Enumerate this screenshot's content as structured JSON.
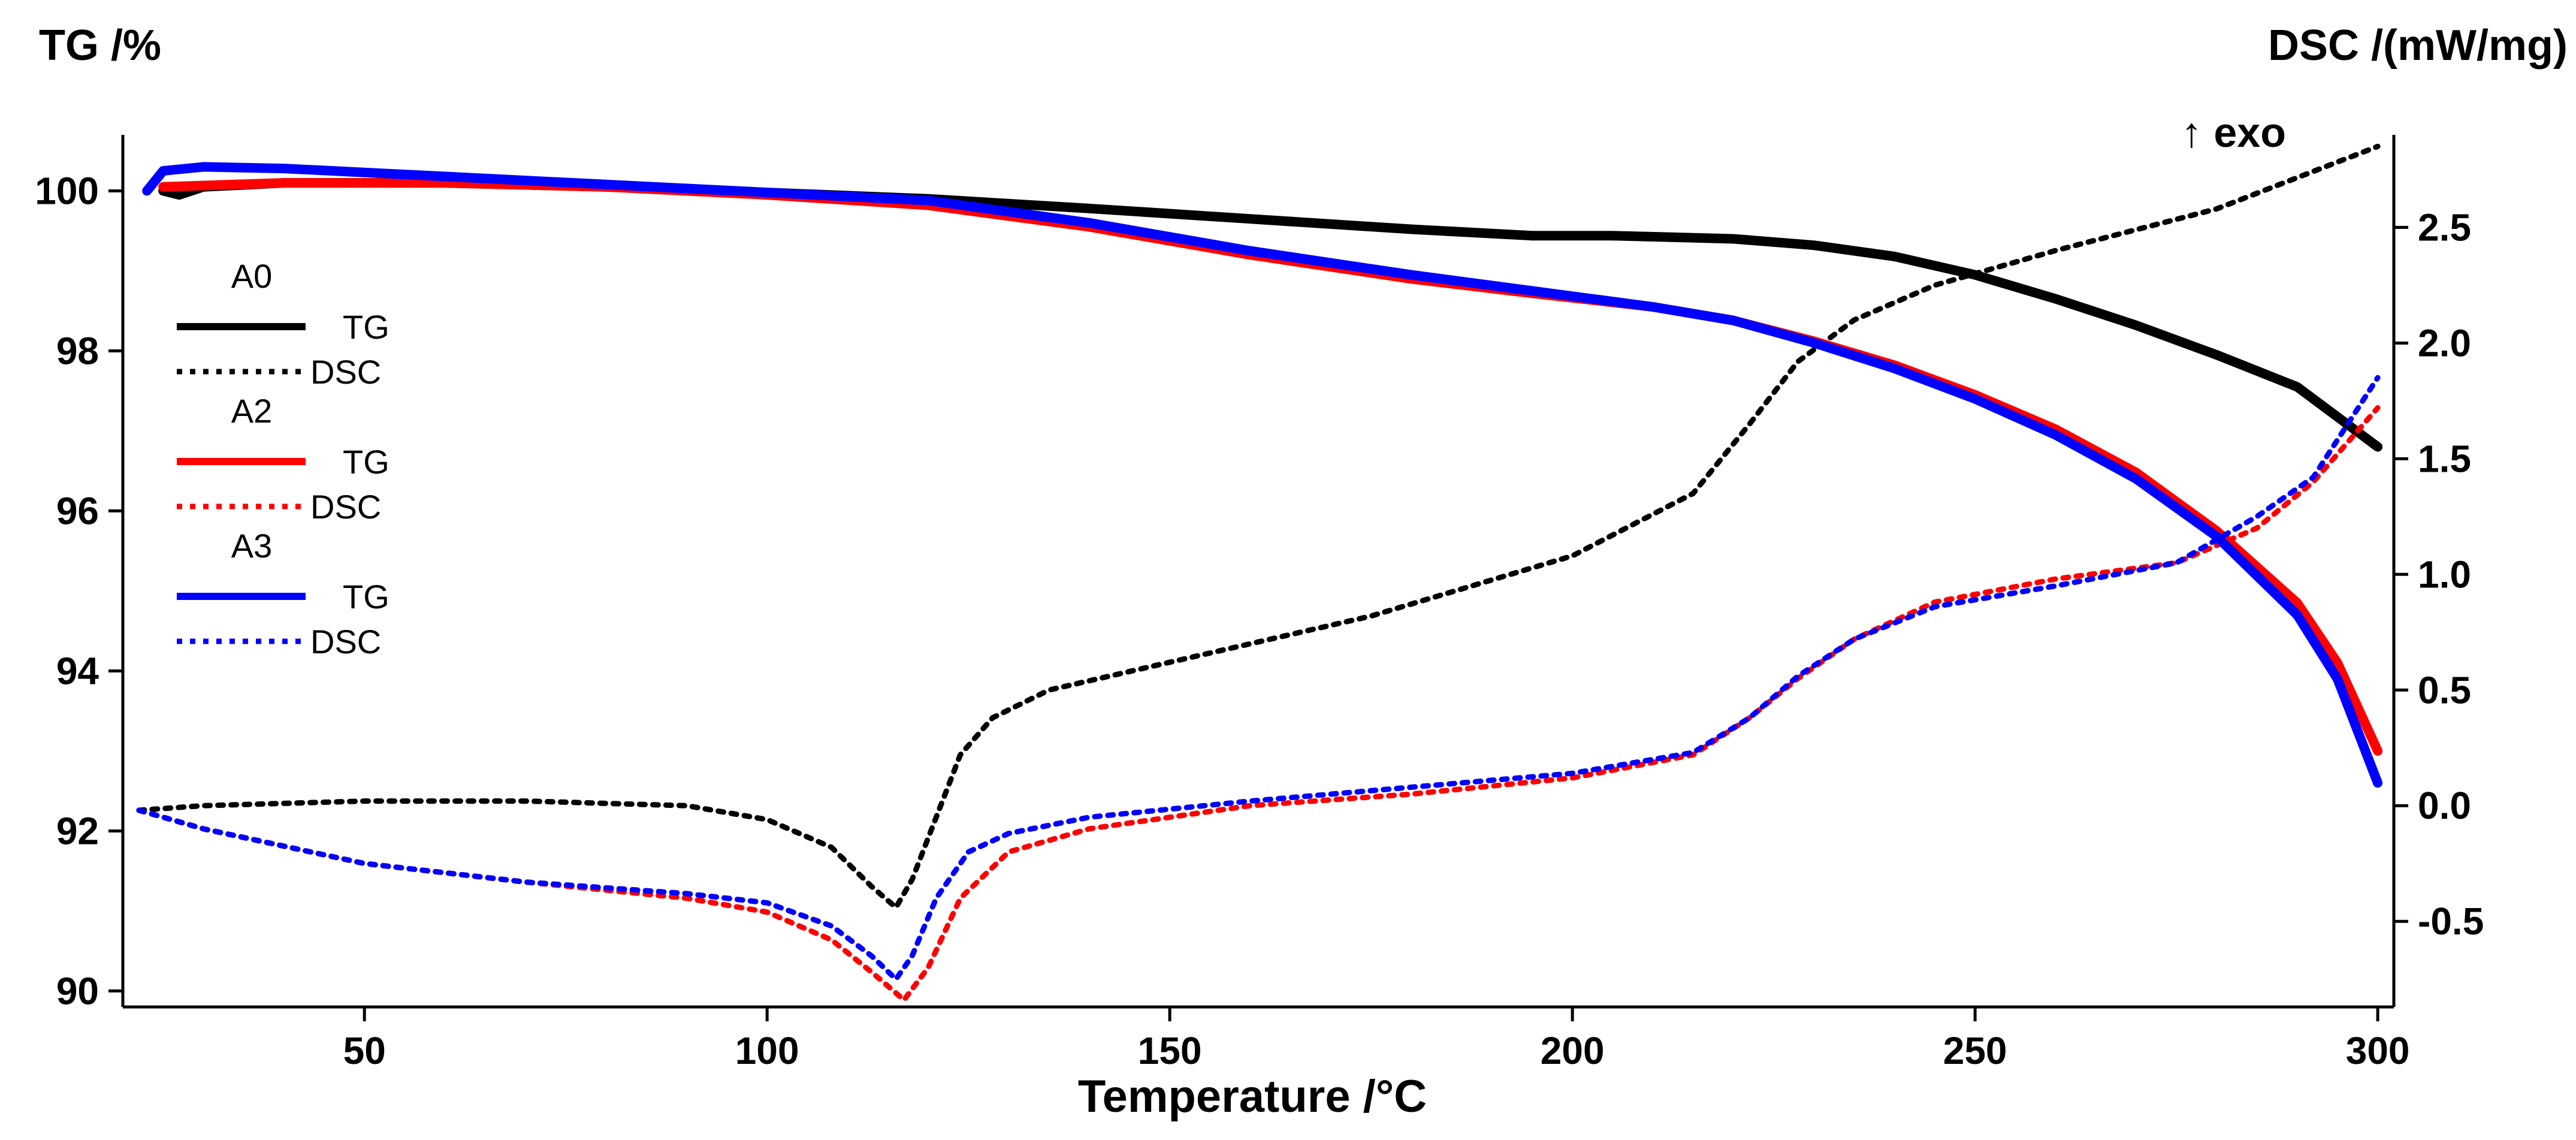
{
  "chart_data": {
    "type": "line",
    "title": "",
    "xlabel": "Temperature /°C",
    "ylabel_left": "TG /%",
    "ylabel_right": "DSC /(mW/mg)",
    "exo_label": "↑ exo",
    "xlim": [
      20,
      302
    ],
    "ylim_left": [
      89.8,
      100.7
    ],
    "ylim_right": [
      -0.87,
      2.9
    ],
    "x_ticks": [
      50,
      100,
      150,
      200,
      250,
      300
    ],
    "y_left_ticks": [
      90,
      92,
      94,
      96,
      98,
      100
    ],
    "y_right_ticks": [
      -0.5,
      0.0,
      0.5,
      1.0,
      1.5,
      2.0,
      2.5
    ],
    "y_right_tick_labels": [
      "-0.5",
      "0.0",
      "0.5",
      "1.0",
      "1.5",
      "2.0",
      "2.5"
    ],
    "legend": {
      "groups": [
        {
          "name": "A0",
          "tg_label": "TG",
          "dsc_label": "DSC",
          "color": "#000000"
        },
        {
          "name": "A2",
          "tg_label": "TG",
          "dsc_label": "DSC",
          "color": "#ff0000"
        },
        {
          "name": "A3",
          "tg_label": "TG",
          "dsc_label": "DSC",
          "color": "#0000ff"
        }
      ]
    },
    "series": [
      {
        "name": "A0 TG",
        "axis": "left",
        "style": "solid",
        "color": "#000000",
        "x": [
          25,
          27,
          30,
          40,
          60,
          80,
          100,
          120,
          140,
          160,
          180,
          195,
          205,
          220,
          230,
          240,
          250,
          260,
          270,
          280,
          290,
          300
        ],
        "y": [
          100.0,
          99.95,
          100.05,
          100.1,
          100.1,
          100.05,
          99.98,
          99.9,
          99.78,
          99.65,
          99.52,
          99.44,
          99.44,
          99.4,
          99.32,
          99.18,
          98.95,
          98.65,
          98.32,
          97.95,
          97.55,
          96.8
        ]
      },
      {
        "name": "A0 DSC",
        "axis": "right",
        "style": "dotted",
        "color": "#000000",
        "x": [
          22,
          30,
          50,
          70,
          90,
          100,
          108,
          113,
          116,
          118,
          121,
          124,
          128,
          135,
          150,
          175,
          200,
          215,
          222,
          228,
          235,
          245,
          260,
          280,
          300
        ],
        "y": [
          -0.02,
          0.0,
          0.02,
          0.02,
          0.0,
          -0.06,
          -0.18,
          -0.35,
          -0.44,
          -0.32,
          -0.05,
          0.22,
          0.38,
          0.5,
          0.62,
          0.82,
          1.08,
          1.35,
          1.65,
          1.92,
          2.1,
          2.25,
          2.4,
          2.58,
          2.85
        ]
      },
      {
        "name": "A2 TG",
        "axis": "left",
        "style": "solid",
        "color": "#ff0000",
        "x": [
          25,
          40,
          60,
          80,
          100,
          120,
          140,
          160,
          180,
          195,
          210,
          220,
          230,
          240,
          250,
          260,
          270,
          280,
          290,
          295,
          300
        ],
        "y": [
          100.05,
          100.1,
          100.1,
          100.05,
          99.95,
          99.82,
          99.55,
          99.2,
          98.9,
          98.72,
          98.55,
          98.38,
          98.12,
          97.82,
          97.45,
          97.02,
          96.48,
          95.75,
          94.85,
          94.1,
          93.0
        ]
      },
      {
        "name": "A2 DSC",
        "axis": "right",
        "style": "dotted",
        "color": "#ff0000",
        "x": [
          22,
          30,
          50,
          70,
          90,
          100,
          108,
          113,
          117,
          120,
          124,
          130,
          140,
          160,
          180,
          200,
          215,
          222,
          228,
          235,
          245,
          260,
          275,
          285,
          292,
          300
        ],
        "y": [
          -0.02,
          -0.1,
          -0.25,
          -0.33,
          -0.4,
          -0.46,
          -0.58,
          -0.72,
          -0.84,
          -0.7,
          -0.4,
          -0.2,
          -0.1,
          0.0,
          0.05,
          0.12,
          0.22,
          0.38,
          0.55,
          0.72,
          0.88,
          0.98,
          1.05,
          1.2,
          1.4,
          1.72
        ]
      },
      {
        "name": "A3 TG",
        "axis": "left",
        "style": "solid",
        "color": "#0000ff",
        "x": [
          23,
          25,
          30,
          40,
          60,
          80,
          100,
          120,
          140,
          160,
          180,
          195,
          210,
          220,
          230,
          240,
          250,
          260,
          270,
          280,
          290,
          295,
          300
        ],
        "y": [
          100.0,
          100.25,
          100.3,
          100.28,
          100.18,
          100.08,
          99.98,
          99.88,
          99.6,
          99.25,
          98.95,
          98.75,
          98.55,
          98.38,
          98.1,
          97.78,
          97.4,
          96.95,
          96.4,
          95.68,
          94.7,
          93.9,
          92.6
        ]
      },
      {
        "name": "A3 DSC",
        "axis": "right",
        "style": "dotted",
        "color": "#0000ff",
        "x": [
          22,
          30,
          50,
          70,
          90,
          100,
          108,
          113,
          116,
          118,
          121,
          125,
          130,
          140,
          160,
          180,
          200,
          215,
          222,
          228,
          235,
          245,
          260,
          275,
          285,
          292,
          300
        ],
        "y": [
          -0.02,
          -0.1,
          -0.25,
          -0.33,
          -0.38,
          -0.42,
          -0.52,
          -0.65,
          -0.75,
          -0.65,
          -0.4,
          -0.2,
          -0.12,
          -0.05,
          0.02,
          0.08,
          0.14,
          0.23,
          0.38,
          0.56,
          0.72,
          0.86,
          0.95,
          1.05,
          1.25,
          1.42,
          1.85
        ]
      }
    ]
  }
}
